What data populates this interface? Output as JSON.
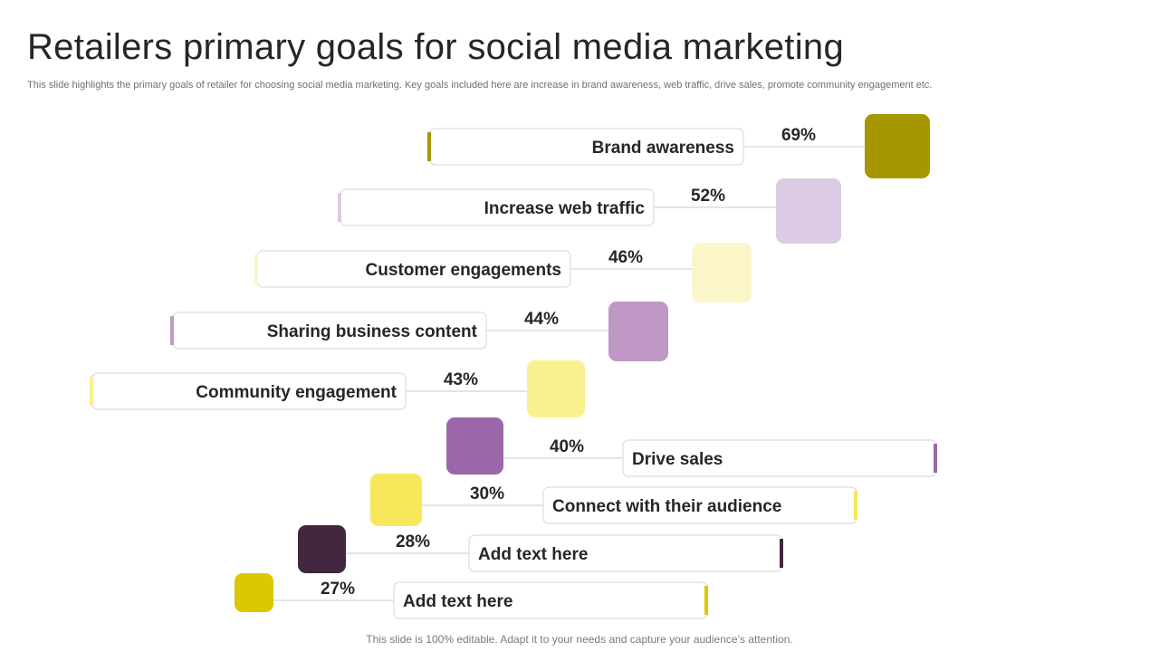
{
  "slide": {
    "title": "Retailers primary goals for social media marketing",
    "subtitle": "This slide highlights the primary goals of retailer for choosing social media marketing. Key goals included here are increase in brand awareness, web traffic, drive sales, promote community engagement etc.",
    "footer": "This slide is 100% editable. Adapt it to your needs and capture your audience’s attention."
  },
  "chart_data": {
    "type": "bar",
    "title": "",
    "unit": "%",
    "categories": [
      "Brand awareness",
      "Increase web traffic",
      "Customer engagements",
      "Sharing business content",
      "Community engagement",
      "Drive sales",
      "Connect with their audience",
      "Add text here",
      "Add text here"
    ],
    "values": [
      69,
      52,
      46,
      44,
      43,
      40,
      30,
      28,
      27
    ],
    "value_labels": [
      "69%",
      "52%",
      "46%",
      "44%",
      "43%",
      "40%",
      "30%",
      "28%",
      "27%"
    ],
    "colors": [
      "#a69700",
      "#dccbe4",
      "#fbf6c9",
      "#bf98c6",
      "#faf08f",
      "#9b67a8",
      "#f7e75a",
      "#41273f",
      "#dcc700"
    ]
  }
}
